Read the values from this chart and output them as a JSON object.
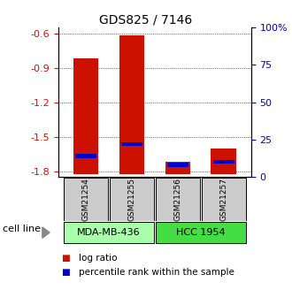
{
  "title": "GDS825 / 7146",
  "samples": [
    "GSM21254",
    "GSM21255",
    "GSM21256",
    "GSM21257"
  ],
  "log_ratio": [
    -0.82,
    -0.62,
    -1.72,
    -1.6
  ],
  "log_ratio_base": [
    -1.83,
    -1.83,
    -1.83,
    -1.83
  ],
  "percentile_rank_pct": [
    14,
    22,
    8,
    10
  ],
  "cell_lines": [
    {
      "label": "MDA-MB-436",
      "samples": [
        0,
        1
      ],
      "color": "#aaffaa"
    },
    {
      "label": "HCC 1954",
      "samples": [
        2,
        3
      ],
      "color": "#44dd44"
    }
  ],
  "ylim_left": [
    -1.85,
    -0.55
  ],
  "ylim_right": [
    0,
    100
  ],
  "yticks_left": [
    -1.8,
    -1.5,
    -1.2,
    -0.9,
    -0.6
  ],
  "yticks_right": [
    0,
    25,
    50,
    75,
    100
  ],
  "bar_width": 0.55,
  "red_color": "#cc1100",
  "blue_color": "#0000cc",
  "sample_box_color": "#cccccc",
  "left_axis_color": "#cc1100",
  "right_axis_color": "#0000bb",
  "legend_items": [
    "log ratio",
    "percentile rank within the sample"
  ],
  "cell_line_label": "cell line"
}
